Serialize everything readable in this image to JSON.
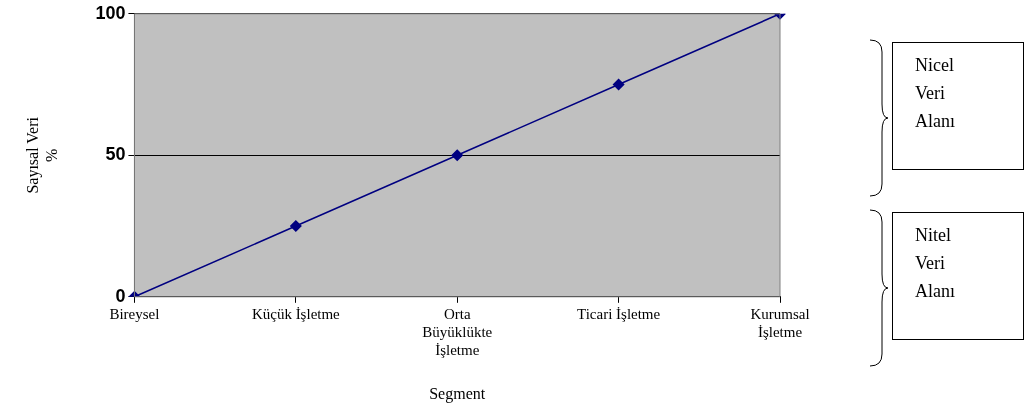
{
  "chart_data": {
    "type": "line",
    "xlabel": "Segment",
    "ylabel": "Sayısal Veri %",
    "categories": [
      "Bireysel",
      "Küçük İşletme",
      "Orta Büyüklükte İşletme",
      "Ticari İşletme",
      "Kurumsal İşletme"
    ],
    "series": [
      {
        "color": "#000080",
        "values": [
          0,
          25,
          50,
          75,
          100
        ]
      }
    ],
    "ylim": [
      0,
      100
    ],
    "yticks": [
      0,
      50,
      100
    ],
    "grid": "y",
    "legend": false,
    "marker": "diamond",
    "line_style": "solid",
    "annotations": [
      "Nicel Veri Alanı",
      "Nitel Veri Alanı"
    ]
  }
}
